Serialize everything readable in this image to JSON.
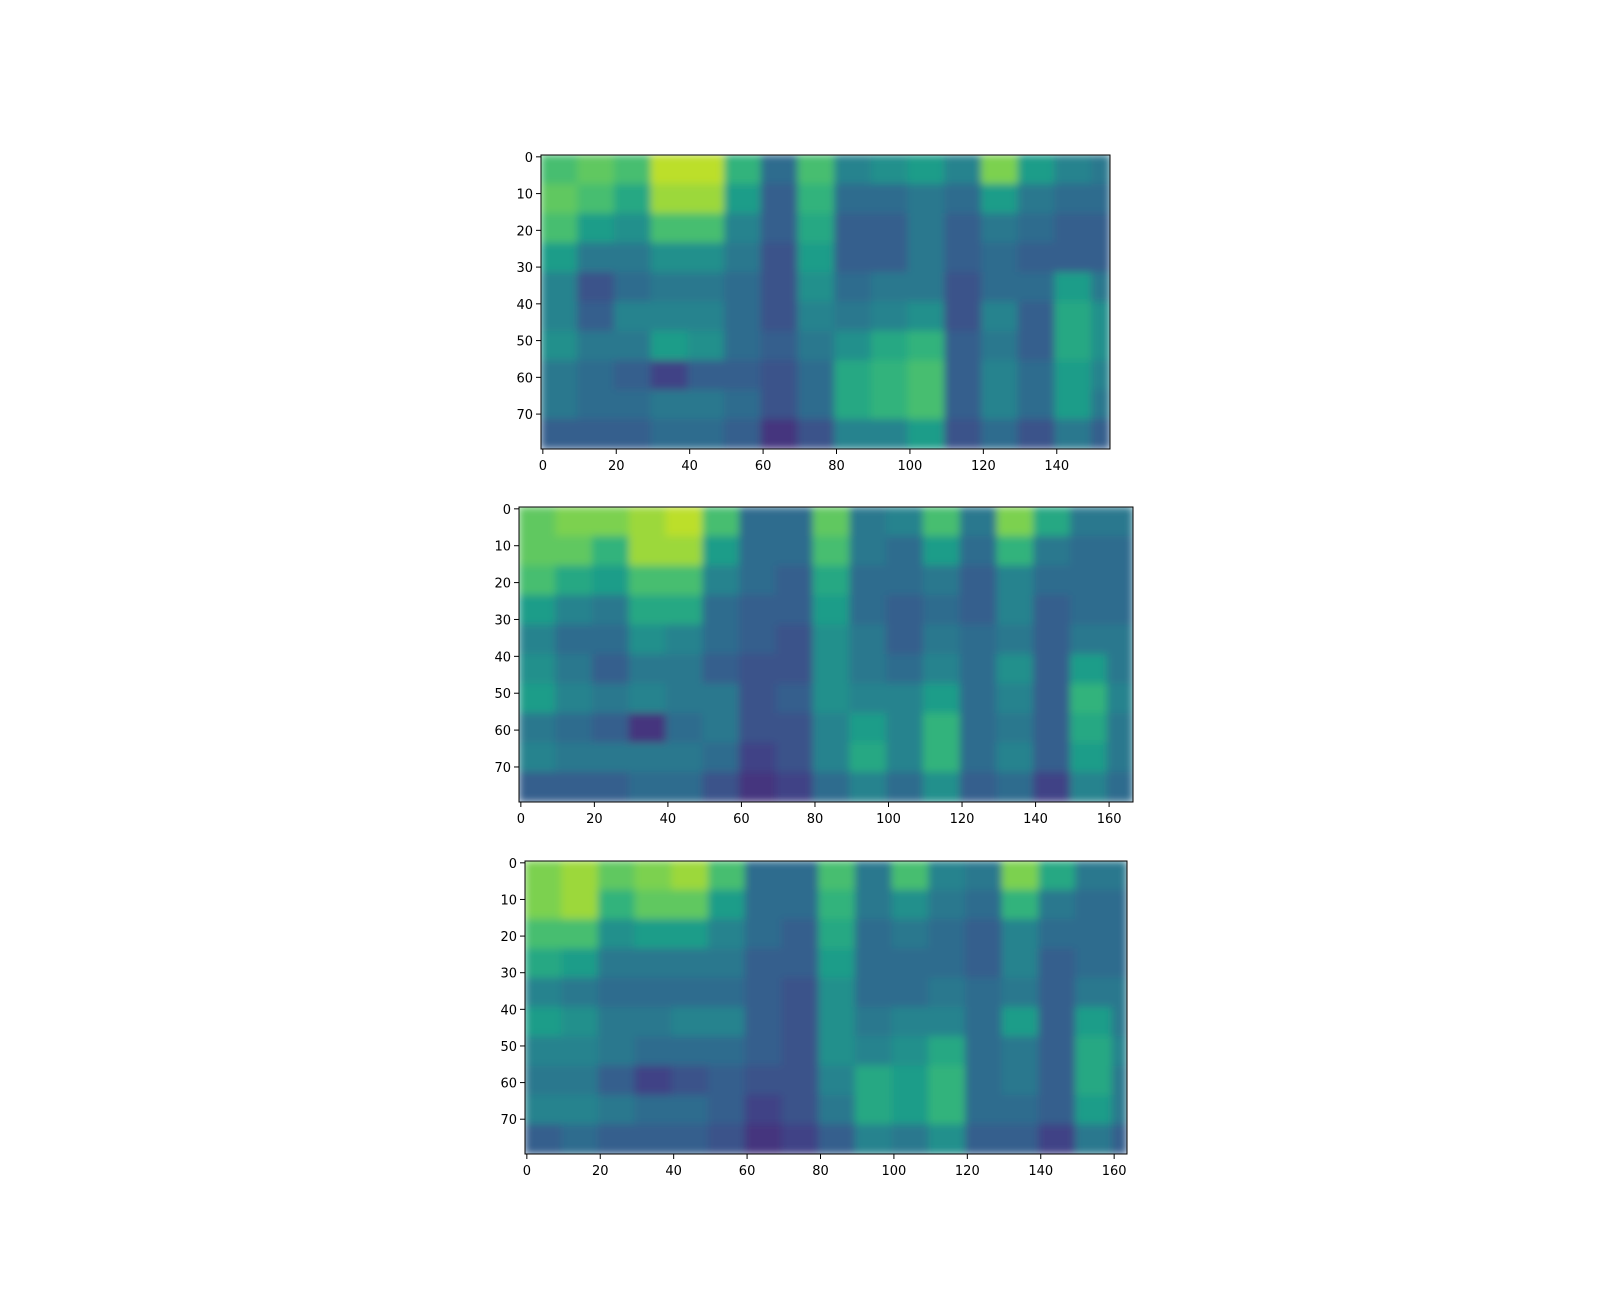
{
  "chart_data": [
    {
      "type": "heatmap",
      "colormap": "viridis",
      "vlim": [
        0,
        1
      ],
      "xlim": [
        -0.5,
        154.5
      ],
      "ylim": [
        79.5,
        -0.5
      ],
      "xticks": [
        0,
        20,
        40,
        60,
        80,
        100,
        120,
        140
      ],
      "yticks": [
        0,
        10,
        20,
        30,
        40,
        50,
        60,
        70
      ],
      "xbins": [
        -0.5,
        9.5,
        19.5,
        29.5,
        39.5,
        49.5,
        59.5,
        69.5,
        79.5,
        89.5,
        99.5,
        109.5,
        119.5,
        129.5,
        139.5,
        149.5,
        154.5
      ],
      "ybins": [
        -0.5,
        7.5,
        15.5,
        23.5,
        31.5,
        39.5,
        47.5,
        55.5,
        63.5,
        71.5,
        79.5
      ],
      "values": [
        [
          0.7,
          0.75,
          0.7,
          0.9,
          0.9,
          0.65,
          0.35,
          0.7,
          0.45,
          0.5,
          0.55,
          0.45,
          0.8,
          0.55,
          0.45,
          0.4
        ],
        [
          0.75,
          0.7,
          0.6,
          0.85,
          0.85,
          0.55,
          0.3,
          0.65,
          0.35,
          0.35,
          0.4,
          0.35,
          0.55,
          0.4,
          0.35,
          0.35
        ],
        [
          0.7,
          0.55,
          0.5,
          0.7,
          0.7,
          0.45,
          0.3,
          0.6,
          0.3,
          0.3,
          0.4,
          0.3,
          0.4,
          0.35,
          0.3,
          0.3
        ],
        [
          0.55,
          0.4,
          0.4,
          0.5,
          0.5,
          0.4,
          0.25,
          0.55,
          0.3,
          0.3,
          0.4,
          0.3,
          0.35,
          0.3,
          0.3,
          0.3
        ],
        [
          0.45,
          0.25,
          0.35,
          0.4,
          0.4,
          0.35,
          0.25,
          0.5,
          0.35,
          0.4,
          0.4,
          0.25,
          0.35,
          0.35,
          0.55,
          0.4
        ],
        [
          0.45,
          0.3,
          0.45,
          0.45,
          0.45,
          0.35,
          0.25,
          0.45,
          0.4,
          0.45,
          0.5,
          0.25,
          0.45,
          0.3,
          0.6,
          0.5
        ],
        [
          0.5,
          0.4,
          0.4,
          0.55,
          0.5,
          0.35,
          0.3,
          0.4,
          0.5,
          0.6,
          0.65,
          0.3,
          0.4,
          0.3,
          0.6,
          0.5
        ],
        [
          0.4,
          0.35,
          0.3,
          0.2,
          0.3,
          0.3,
          0.25,
          0.35,
          0.6,
          0.65,
          0.7,
          0.3,
          0.45,
          0.35,
          0.55,
          0.45
        ],
        [
          0.4,
          0.35,
          0.35,
          0.4,
          0.4,
          0.35,
          0.25,
          0.35,
          0.6,
          0.65,
          0.7,
          0.3,
          0.45,
          0.35,
          0.55,
          0.4
        ],
        [
          0.3,
          0.3,
          0.3,
          0.35,
          0.35,
          0.3,
          0.15,
          0.25,
          0.45,
          0.45,
          0.55,
          0.25,
          0.35,
          0.25,
          0.4,
          0.3
        ]
      ]
    },
    {
      "type": "heatmap",
      "colormap": "viridis",
      "vlim": [
        0,
        1
      ],
      "xlim": [
        -0.5,
        166.5
      ],
      "ylim": [
        79.5,
        -0.5
      ],
      "xticks": [
        0,
        20,
        40,
        60,
        80,
        100,
        120,
        140,
        160
      ],
      "yticks": [
        0,
        10,
        20,
        30,
        40,
        50,
        60,
        70
      ],
      "xbins": [
        -0.5,
        9.5,
        19.5,
        29.5,
        39.5,
        49.5,
        59.5,
        69.5,
        79.5,
        89.5,
        99.5,
        109.5,
        119.5,
        129.5,
        139.5,
        149.5,
        159.5,
        166.5
      ],
      "ybins": [
        -0.5,
        7.5,
        15.5,
        23.5,
        31.5,
        39.5,
        47.5,
        55.5,
        63.5,
        71.5,
        79.5
      ],
      "values": [
        [
          0.75,
          0.8,
          0.8,
          0.85,
          0.9,
          0.7,
          0.35,
          0.35,
          0.75,
          0.4,
          0.45,
          0.7,
          0.4,
          0.8,
          0.6,
          0.4,
          0.4
        ],
        [
          0.75,
          0.75,
          0.65,
          0.85,
          0.85,
          0.55,
          0.35,
          0.35,
          0.7,
          0.4,
          0.35,
          0.55,
          0.35,
          0.65,
          0.4,
          0.35,
          0.35
        ],
        [
          0.7,
          0.6,
          0.55,
          0.7,
          0.7,
          0.45,
          0.35,
          0.3,
          0.6,
          0.35,
          0.35,
          0.4,
          0.3,
          0.45,
          0.35,
          0.35,
          0.35
        ],
        [
          0.55,
          0.45,
          0.4,
          0.6,
          0.6,
          0.35,
          0.3,
          0.3,
          0.55,
          0.35,
          0.3,
          0.35,
          0.3,
          0.45,
          0.3,
          0.35,
          0.35
        ],
        [
          0.45,
          0.35,
          0.35,
          0.5,
          0.45,
          0.35,
          0.3,
          0.25,
          0.5,
          0.4,
          0.3,
          0.4,
          0.35,
          0.4,
          0.3,
          0.4,
          0.4
        ],
        [
          0.5,
          0.4,
          0.3,
          0.4,
          0.4,
          0.3,
          0.25,
          0.25,
          0.5,
          0.4,
          0.35,
          0.45,
          0.35,
          0.5,
          0.3,
          0.55,
          0.4
        ],
        [
          0.55,
          0.45,
          0.4,
          0.45,
          0.4,
          0.4,
          0.25,
          0.3,
          0.5,
          0.45,
          0.45,
          0.55,
          0.35,
          0.45,
          0.3,
          0.65,
          0.45
        ],
        [
          0.4,
          0.35,
          0.3,
          0.15,
          0.35,
          0.4,
          0.25,
          0.25,
          0.45,
          0.55,
          0.45,
          0.65,
          0.35,
          0.4,
          0.3,
          0.6,
          0.4
        ],
        [
          0.45,
          0.4,
          0.4,
          0.4,
          0.4,
          0.35,
          0.2,
          0.25,
          0.45,
          0.6,
          0.45,
          0.65,
          0.35,
          0.45,
          0.3,
          0.55,
          0.4
        ],
        [
          0.3,
          0.3,
          0.3,
          0.35,
          0.35,
          0.25,
          0.15,
          0.2,
          0.35,
          0.45,
          0.35,
          0.5,
          0.3,
          0.35,
          0.2,
          0.45,
          0.35
        ]
      ]
    },
    {
      "type": "heatmap",
      "colormap": "viridis",
      "vlim": [
        0,
        1
      ],
      "xlim": [
        -0.5,
        163.5
      ],
      "ylim": [
        79.5,
        -0.5
      ],
      "xticks": [
        0,
        20,
        40,
        60,
        80,
        100,
        120,
        140,
        160
      ],
      "yticks": [
        0,
        10,
        20,
        30,
        40,
        50,
        60,
        70
      ],
      "xbins": [
        -0.5,
        9.5,
        19.5,
        29.5,
        39.5,
        49.5,
        59.5,
        69.5,
        79.5,
        89.5,
        99.5,
        109.5,
        119.5,
        129.5,
        139.5,
        149.5,
        159.5,
        163.5
      ],
      "ybins": [
        -0.5,
        7.5,
        15.5,
        23.5,
        31.5,
        39.5,
        47.5,
        55.5,
        63.5,
        71.5,
        79.5
      ],
      "values": [
        [
          0.8,
          0.85,
          0.75,
          0.8,
          0.85,
          0.7,
          0.35,
          0.35,
          0.7,
          0.4,
          0.7,
          0.45,
          0.4,
          0.8,
          0.6,
          0.4,
          0.4
        ],
        [
          0.8,
          0.85,
          0.65,
          0.75,
          0.75,
          0.55,
          0.35,
          0.35,
          0.65,
          0.4,
          0.5,
          0.4,
          0.35,
          0.65,
          0.4,
          0.35,
          0.35
        ],
        [
          0.7,
          0.7,
          0.5,
          0.55,
          0.55,
          0.45,
          0.35,
          0.3,
          0.6,
          0.35,
          0.4,
          0.35,
          0.3,
          0.45,
          0.35,
          0.35,
          0.35
        ],
        [
          0.6,
          0.55,
          0.4,
          0.4,
          0.4,
          0.4,
          0.3,
          0.3,
          0.55,
          0.35,
          0.35,
          0.35,
          0.3,
          0.45,
          0.3,
          0.35,
          0.35
        ],
        [
          0.45,
          0.4,
          0.35,
          0.35,
          0.35,
          0.35,
          0.3,
          0.25,
          0.5,
          0.35,
          0.35,
          0.4,
          0.35,
          0.4,
          0.3,
          0.4,
          0.4
        ],
        [
          0.55,
          0.5,
          0.4,
          0.4,
          0.45,
          0.45,
          0.3,
          0.25,
          0.5,
          0.4,
          0.45,
          0.45,
          0.35,
          0.55,
          0.3,
          0.55,
          0.4
        ],
        [
          0.45,
          0.45,
          0.4,
          0.35,
          0.35,
          0.35,
          0.3,
          0.25,
          0.5,
          0.45,
          0.5,
          0.6,
          0.35,
          0.4,
          0.3,
          0.6,
          0.45
        ],
        [
          0.4,
          0.4,
          0.3,
          0.2,
          0.25,
          0.3,
          0.25,
          0.25,
          0.45,
          0.6,
          0.55,
          0.65,
          0.35,
          0.4,
          0.3,
          0.6,
          0.4
        ],
        [
          0.45,
          0.45,
          0.4,
          0.35,
          0.35,
          0.3,
          0.2,
          0.25,
          0.4,
          0.6,
          0.55,
          0.65,
          0.35,
          0.35,
          0.3,
          0.55,
          0.4
        ],
        [
          0.3,
          0.35,
          0.3,
          0.3,
          0.3,
          0.25,
          0.15,
          0.2,
          0.3,
          0.45,
          0.4,
          0.5,
          0.3,
          0.3,
          0.2,
          0.4,
          0.3
        ]
      ]
    }
  ]
}
